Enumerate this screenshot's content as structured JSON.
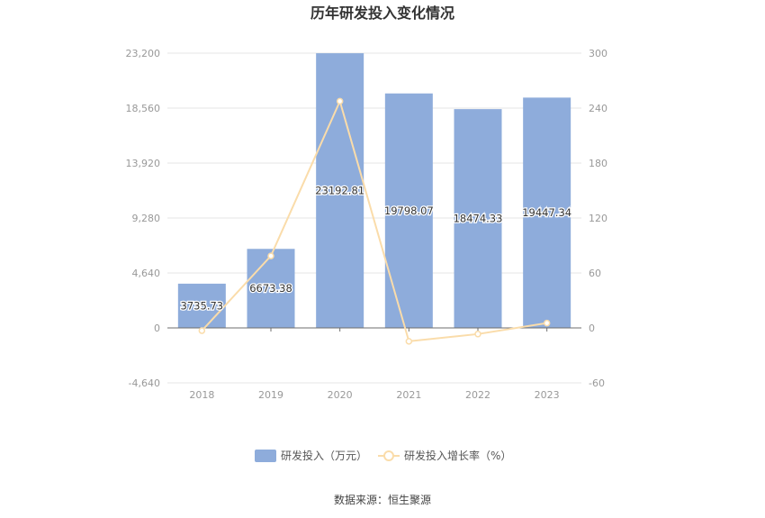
{
  "title": "历年研发投入变化情况",
  "source": "数据来源：恒生聚源",
  "colors": {
    "bar": "#8eacdb",
    "line": "#fadcaa",
    "grid": "#e6e6e6",
    "axis": "#999999"
  },
  "chart_data": {
    "type": "bar",
    "title": "历年研发投入变化情况",
    "categories": [
      "2018",
      "2019",
      "2020",
      "2021",
      "2022",
      "2023"
    ],
    "series": [
      {
        "name": "研发投入（万元）",
        "type": "bar",
        "axis": "left",
        "values": [
          3735.73,
          6673.38,
          23192.81,
          19798.07,
          18474.33,
          19447.34
        ],
        "labels": [
          "3735.73",
          "6673.38",
          "23192.81",
          "19798.07",
          "18474.33",
          "19447.34"
        ]
      },
      {
        "name": "研发投入增长率（%）",
        "type": "line",
        "axis": "right",
        "values": [
          -3,
          78.6,
          247.5,
          -14.6,
          -6.7,
          5.3
        ]
      }
    ],
    "left_axis": {
      "ylim": [
        -4640,
        23200
      ],
      "ticks": [
        "23,200",
        "18,560",
        "13,920",
        "9,280",
        "4,640",
        "0",
        "-4,640"
      ],
      "tick_values": [
        23200,
        18560,
        13920,
        9280,
        4640,
        0,
        -4640
      ]
    },
    "right_axis": {
      "ylim": [
        -60,
        300
      ],
      "ticks": [
        "300",
        "240",
        "180",
        "120",
        "60",
        "0",
        "-60"
      ],
      "tick_values": [
        300,
        240,
        180,
        120,
        60,
        0,
        -60
      ]
    },
    "grid": true,
    "legend": "bottom-center"
  }
}
